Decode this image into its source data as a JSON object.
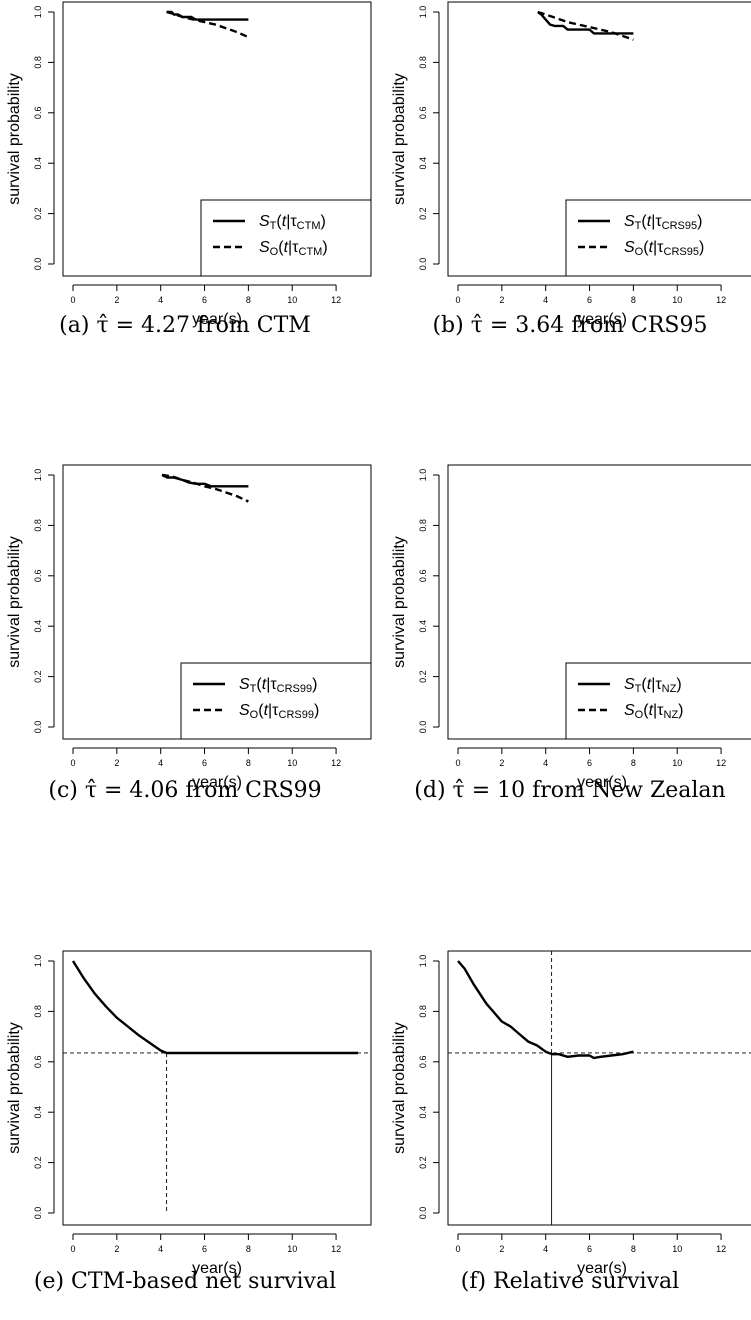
{
  "chart_data": [
    {
      "type": "line",
      "caption": "(a) τ̂ = 4.27 from CTM",
      "xlabel": "year(s)",
      "ylabel": "survival probability",
      "xlim": [
        0,
        13
      ],
      "ylim": [
        0,
        1
      ],
      "xticks": [
        "0",
        "2",
        "4",
        "6",
        "8",
        "10",
        "12"
      ],
      "yticks": [
        "0.0",
        "0.2",
        "0.4",
        "0.6",
        "0.8",
        "1.0"
      ],
      "legend": "bottom-right",
      "series": [
        {
          "name": "S_T(t|τ_CTM)",
          "label": {
            "s": "S",
            "sub1": "T",
            "mid": "(t|τ",
            "sub2": "CTM",
            "end": ")"
          },
          "style": "solid",
          "x": [
            4.27,
            4.5,
            4.6,
            4.8,
            5.0,
            5.4,
            5.6,
            6.0,
            8.0
          ],
          "y": [
            1.0,
            1.0,
            0.99,
            0.99,
            0.98,
            0.98,
            0.97,
            0.97,
            0.97
          ]
        },
        {
          "name": "S_O(t|τ_CTM)",
          "label": {
            "s": "S",
            "sub1": "O",
            "mid": "(t|τ",
            "sub2": "CTM",
            "end": ")"
          },
          "style": "dashed",
          "x": [
            4.27,
            4.5,
            5.0,
            5.5,
            6.0,
            6.5,
            7.0,
            7.5,
            8.0
          ],
          "y": [
            1.0,
            0.995,
            0.98,
            0.97,
            0.96,
            0.95,
            0.935,
            0.92,
            0.9
          ]
        }
      ]
    },
    {
      "type": "line",
      "caption": "(b) τ̂ = 3.64 from CRS95",
      "xlabel": "year(s)",
      "ylabel": "survival probability",
      "xlim": [
        0,
        13
      ],
      "ylim": [
        0,
        1
      ],
      "xticks": [
        "0",
        "2",
        "4",
        "6",
        "8",
        "10",
        "12"
      ],
      "yticks": [
        "0.0",
        "0.2",
        "0.4",
        "0.6",
        "0.8",
        "1.0"
      ],
      "legend": "bottom-right",
      "series": [
        {
          "name": "S_T(t|τ_CRS95)",
          "label": {
            "s": "S",
            "sub1": "T",
            "mid": "(t|τ",
            "sub2": "CRS95",
            "end": ")"
          },
          "style": "solid",
          "x": [
            3.64,
            3.8,
            4.0,
            4.2,
            4.4,
            4.8,
            5.0,
            6.0,
            6.2,
            8.0
          ],
          "y": [
            1.0,
            0.99,
            0.97,
            0.95,
            0.945,
            0.945,
            0.93,
            0.93,
            0.915,
            0.915
          ]
        },
        {
          "name": "S_O(t|τ_CRS95)",
          "label": {
            "s": "S",
            "sub1": "O",
            "mid": "(t|τ",
            "sub2": "CRS95",
            "end": ")"
          },
          "style": "dashed",
          "x": [
            3.64,
            4.0,
            4.5,
            5.0,
            5.5,
            6.0,
            6.5,
            7.0,
            7.5,
            8.0
          ],
          "y": [
            1.0,
            0.99,
            0.975,
            0.96,
            0.95,
            0.94,
            0.93,
            0.92,
            0.905,
            0.89
          ]
        }
      ]
    },
    {
      "type": "line",
      "caption": "(c) τ̂ = 4.06 from CRS99",
      "xlabel": "year(s)",
      "ylabel": "survival probability",
      "xlim": [
        0,
        13
      ],
      "ylim": [
        0,
        1
      ],
      "xticks": [
        "0",
        "2",
        "4",
        "6",
        "8",
        "10",
        "12"
      ],
      "yticks": [
        "0.0",
        "0.2",
        "0.4",
        "0.6",
        "0.8",
        "1.0"
      ],
      "legend": "bottom-right",
      "series": [
        {
          "name": "S_T(t|τ_CRS99)",
          "label": {
            "s": "S",
            "sub1": "T",
            "mid": "(t|τ",
            "sub2": "CRS99",
            "end": ")"
          },
          "style": "solid",
          "x": [
            4.06,
            4.3,
            4.6,
            5.0,
            5.3,
            5.6,
            6.0,
            6.3,
            8.0
          ],
          "y": [
            1.0,
            0.99,
            0.99,
            0.98,
            0.97,
            0.965,
            0.965,
            0.955,
            0.955
          ]
        },
        {
          "name": "S_O(t|τ_CRS99)",
          "label": {
            "s": "S",
            "sub1": "O",
            "mid": "(t|τ",
            "sub2": "CRS99",
            "end": ")"
          },
          "style": "dashed",
          "x": [
            4.06,
            4.5,
            5.0,
            5.5,
            6.0,
            6.5,
            7.0,
            7.5,
            8.0
          ],
          "y": [
            1.0,
            0.995,
            0.98,
            0.97,
            0.955,
            0.945,
            0.93,
            0.915,
            0.895
          ]
        }
      ]
    },
    {
      "type": "line",
      "caption": "(d) τ̂ = 10 from New Zealan",
      "xlabel": "year(s)",
      "ylabel": "survival probability",
      "xlim": [
        0,
        13
      ],
      "ylim": [
        0,
        1
      ],
      "xticks": [
        "0",
        "2",
        "4",
        "6",
        "8",
        "10",
        "12"
      ],
      "yticks": [
        "0.0",
        "0.2",
        "0.4",
        "0.6",
        "0.8",
        "1.0"
      ],
      "legend": "bottom-right",
      "series": [
        {
          "name": "S_T(t|τ_NZ)",
          "label": {
            "s": "S",
            "sub1": "T",
            "mid": "(t|τ",
            "sub2": "NZ",
            "end": ")"
          },
          "style": "solid",
          "x": [],
          "y": []
        },
        {
          "name": "S_O(t|τ_NZ)",
          "label": {
            "s": "S",
            "sub1": "O",
            "mid": "(t|τ",
            "sub2": "NZ",
            "end": ")"
          },
          "style": "dashed",
          "x": [],
          "y": []
        }
      ]
    },
    {
      "type": "line",
      "caption": "(e) CTM-based net survival",
      "xlabel": "year(s)",
      "ylabel": "survival probability",
      "xlim": [
        0,
        13
      ],
      "ylim": [
        0,
        1
      ],
      "xticks": [
        "0",
        "2",
        "4",
        "6",
        "8",
        "10",
        "12"
      ],
      "yticks": [
        "0.0",
        "0.2",
        "0.4",
        "0.6",
        "0.8",
        "1.0"
      ],
      "reference_lines": {
        "h": 0.635,
        "v": 4.27
      },
      "series": [
        {
          "style": "solid",
          "x": [
            0,
            0.5,
            1.0,
            1.5,
            2.0,
            2.5,
            3.0,
            3.5,
            4.0,
            4.27,
            6,
            8,
            10,
            12,
            13
          ],
          "y": [
            1.0,
            0.93,
            0.87,
            0.82,
            0.775,
            0.74,
            0.705,
            0.675,
            0.645,
            0.635,
            0.635,
            0.635,
            0.635,
            0.635,
            0.635
          ]
        }
      ]
    },
    {
      "type": "line",
      "caption": "(f) Relative survival",
      "xlabel": "year(s)",
      "ylabel": "survival probability",
      "xlim": [
        0,
        13
      ],
      "ylim": [
        0,
        1
      ],
      "xticks": [
        "0",
        "2",
        "4",
        "6",
        "8",
        "10",
        "12"
      ],
      "yticks": [
        "0.0",
        "0.2",
        "0.4",
        "0.6",
        "0.8",
        "1.0"
      ],
      "reference_lines": {
        "h": 0.635,
        "v": 4.27
      },
      "series": [
        {
          "style": "solid",
          "x": [
            0,
            0.3,
            0.7,
            1.0,
            1.3,
            1.6,
            2.0,
            2.4,
            2.8,
            3.2,
            3.6,
            4.0,
            4.3,
            4.6,
            5.0,
            5.5,
            6.0,
            6.2,
            6.5,
            7.0,
            7.5,
            8.0
          ],
          "y": [
            1.0,
            0.97,
            0.91,
            0.87,
            0.83,
            0.8,
            0.76,
            0.74,
            0.71,
            0.68,
            0.665,
            0.64,
            0.63,
            0.63,
            0.62,
            0.625,
            0.625,
            0.615,
            0.62,
            0.625,
            0.63,
            0.64
          ]
        }
      ]
    }
  ]
}
